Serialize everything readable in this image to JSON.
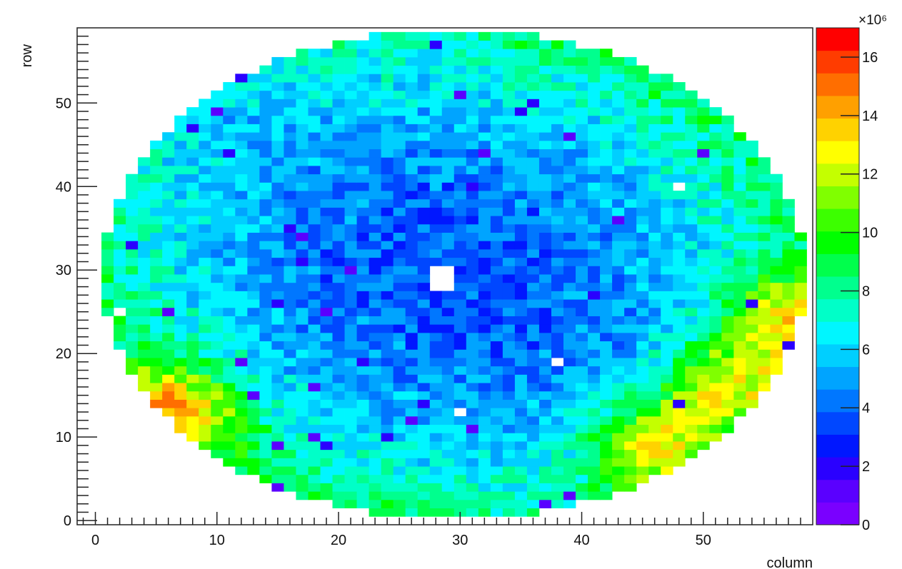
{
  "chart_data": {
    "type": "heatmap",
    "title": "",
    "xlabel": "column",
    "ylabel": "row",
    "xlim": [
      -1.5,
      59
    ],
    "ylim": [
      -0.5,
      59
    ],
    "x_ticks": [
      0,
      10,
      20,
      30,
      40,
      50
    ],
    "y_ticks": [
      0,
      10,
      20,
      30,
      40,
      50
    ],
    "z_exponent_label": "×10⁶",
    "z_range": [
      0,
      17
    ],
    "z_ticks": [
      0,
      2,
      4,
      6,
      8,
      10,
      12,
      14,
      16
    ],
    "z_unit_multiplier": 1000000,
    "grid": false,
    "shape": "ellipse",
    "ellipse_center": {
      "col": 29.5,
      "row": 29.5
    },
    "ellipse_semi_axes": {
      "col": 29,
      "row": 29.5
    },
    "empty_bins": [
      [
        28,
        30
      ],
      [
        29,
        30
      ],
      [
        28,
        29
      ],
      [
        29,
        29
      ],
      [
        28,
        28
      ],
      [
        29,
        28
      ],
      [
        2,
        25
      ],
      [
        48,
        40
      ],
      [
        38,
        19
      ],
      [
        30,
        13
      ]
    ],
    "value_model": {
      "description": "approximate energy per pixel; low in a diagonal band through the centre, higher towards the rim, highest at the lower-left and lower-right edges",
      "center_value": 3.5,
      "rim_value": 8.5,
      "hotspots": [
        {
          "col": 6,
          "row": 13,
          "peak": 15
        },
        {
          "col": 46,
          "row": 9,
          "peak": 15
        },
        {
          "col": 52,
          "row": 16,
          "peak": 14
        },
        {
          "col": 57,
          "row": 24,
          "peak": 14
        }
      ]
    },
    "palette": [
      "#7a00ff",
      "#5a00ff",
      "#2a00ff",
      "#0017ff",
      "#0047ff",
      "#0077ff",
      "#00a4ff",
      "#00cfff",
      "#00f6ff",
      "#00ffc8",
      "#00ff8e",
      "#00ff4c",
      "#00ff00",
      "#3cff00",
      "#80ff00",
      "#c4ff00",
      "#ffff00",
      "#ffd200",
      "#ffa000",
      "#ff6e00",
      "#ff3c00",
      "#ff0000"
    ]
  }
}
